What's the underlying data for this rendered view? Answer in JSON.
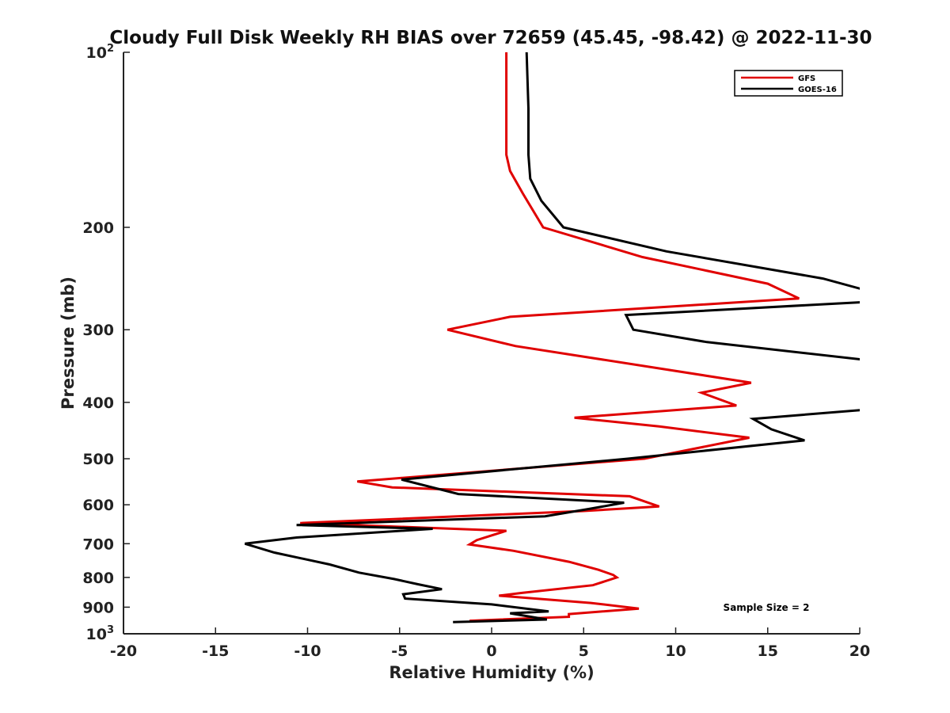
{
  "chart_data": {
    "type": "line",
    "orientation": "profile",
    "title": "Cloudy Full Disk Weekly RH BIAS over 72659 (45.45, -98.42) @ 2022-11-30",
    "xlabel": "Relative Humidity (%)",
    "ylabel": "Pressure (mb)",
    "xlim": [
      -20,
      20
    ],
    "ylim": [
      100,
      1000
    ],
    "y_scale": "log",
    "y_reversed": true,
    "x_ticks": [
      -20,
      -15,
      -10,
      -5,
      0,
      5,
      10,
      15,
      20
    ],
    "x_tick_labels": [
      "-20",
      "-15",
      "-10",
      "-5",
      "0",
      "5",
      "10",
      "15",
      "20"
    ],
    "y_ticks": [
      {
        "value": 100,
        "base": "10",
        "exp": "2"
      },
      {
        "value": 200,
        "label": "200"
      },
      {
        "value": 300,
        "label": "300"
      },
      {
        "value": 400,
        "label": "400"
      },
      {
        "value": 500,
        "label": "500"
      },
      {
        "value": 600,
        "label": "600"
      },
      {
        "value": 700,
        "label": "700"
      },
      {
        "value": 800,
        "label": "800"
      },
      {
        "value": 900,
        "label": "900"
      },
      {
        "value": 1000,
        "base": "10",
        "exp": "3"
      }
    ],
    "grid": false,
    "legend_position": "top-right",
    "annotation": "Sample Size = 2",
    "series": [
      {
        "name": "GFS",
        "color": "#e00000",
        "points": [
          [
            0.8,
            100
          ],
          [
            0.8,
            125
          ],
          [
            0.8,
            150
          ],
          [
            1.0,
            160
          ],
          [
            1.7,
            175
          ],
          [
            2.8,
            200
          ],
          [
            8.2,
            225
          ],
          [
            15.0,
            250
          ],
          [
            16.7,
            265
          ],
          [
            1.0,
            285
          ],
          [
            -2.4,
            300
          ],
          [
            1.3,
            320
          ],
          [
            14.1,
            370
          ],
          [
            11.4,
            385
          ],
          [
            13.3,
            405
          ],
          [
            4.5,
            425
          ],
          [
            9.1,
            440
          ],
          [
            14.0,
            460
          ],
          [
            8.3,
            500
          ],
          [
            -7.3,
            547
          ],
          [
            -5.4,
            560
          ],
          [
            7.5,
            580
          ],
          [
            9.1,
            604
          ],
          [
            5.0,
            615
          ],
          [
            -10.4,
            645
          ],
          [
            0.8,
            665
          ],
          [
            -0.8,
            690
          ],
          [
            -1.2,
            702
          ],
          [
            1.2,
            720
          ],
          [
            4.2,
            752
          ],
          [
            5.8,
            776
          ],
          [
            6.6,
            792
          ],
          [
            6.8,
            800
          ],
          [
            5.5,
            825
          ],
          [
            1.7,
            850
          ],
          [
            0.4,
            860
          ],
          [
            5.4,
            885
          ],
          [
            8.0,
            905
          ],
          [
            4.2,
            925
          ],
          [
            4.2,
            935
          ],
          [
            -1.2,
            950
          ]
        ]
      },
      {
        "name": "GOES-16",
        "color": "#000000",
        "points": [
          [
            1.9,
            100
          ],
          [
            2.0,
            125
          ],
          [
            2.0,
            150
          ],
          [
            2.1,
            165
          ],
          [
            2.7,
            180
          ],
          [
            3.9,
            200
          ],
          [
            9.5,
            220
          ],
          [
            18.0,
            245
          ],
          [
            21.0,
            260
          ],
          [
            21.0,
            268
          ],
          [
            7.3,
            283
          ],
          [
            7.7,
            300
          ],
          [
            11.7,
            315
          ],
          [
            21.0,
            340
          ],
          [
            21.0,
            410
          ],
          [
            14.2,
            427
          ],
          [
            15.2,
            445
          ],
          [
            17.0,
            465
          ],
          [
            7.4,
            500
          ],
          [
            -4.9,
            543
          ],
          [
            -1.8,
            575
          ],
          [
            7.2,
            595
          ],
          [
            5.3,
            610
          ],
          [
            2.9,
            628
          ],
          [
            -10.6,
            650
          ],
          [
            -3.2,
            660
          ],
          [
            -10.6,
            683
          ],
          [
            -13.4,
            700
          ],
          [
            -11.8,
            725
          ],
          [
            -8.8,
            760
          ],
          [
            -7.2,
            785
          ],
          [
            -5.3,
            805
          ],
          [
            -4.0,
            822
          ],
          [
            -2.7,
            838
          ],
          [
            -4.8,
            855
          ],
          [
            -4.7,
            870
          ],
          [
            0.0,
            890
          ],
          [
            3.1,
            915
          ],
          [
            1.0,
            922
          ],
          [
            3.0,
            945
          ],
          [
            -2.1,
            955
          ]
        ]
      }
    ]
  }
}
